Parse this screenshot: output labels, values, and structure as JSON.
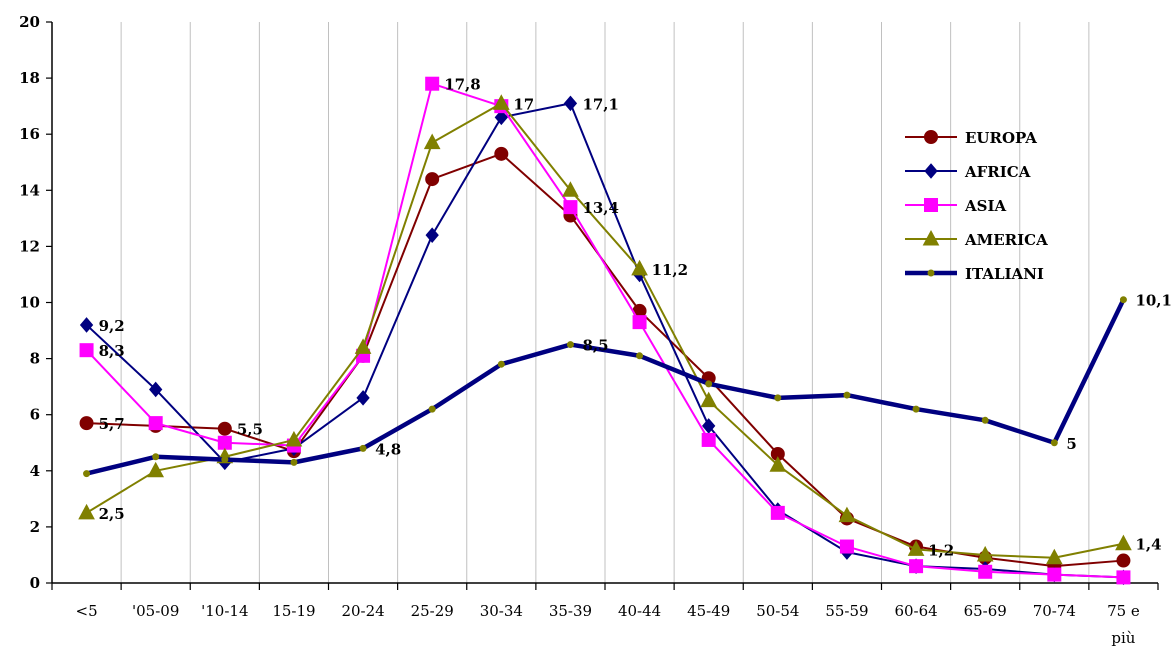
{
  "chart_data": {
    "type": "line",
    "title": "",
    "xlabel": "",
    "ylabel": "",
    "ylim": [
      0,
      20
    ],
    "yticks": [
      "0",
      "2",
      "4",
      "6",
      "8",
      "10",
      "12",
      "14",
      "16",
      "18",
      "20"
    ],
    "categories": [
      "<5",
      "'05-09",
      "'10-14",
      "15-19",
      "20-24",
      "25-29",
      "30-34",
      "35-39",
      "40-44",
      "45-49",
      "50-54",
      "55-59",
      "60-64",
      "65-69",
      "70-74",
      "75 e più"
    ],
    "grid": "vertical",
    "legend_position": "right",
    "series": [
      {
        "name": "EUROPA",
        "marker": "circle",
        "color": "#800000",
        "line_color": "#800000",
        "values": [
          5.7,
          5.6,
          5.5,
          4.7,
          8.1,
          14.4,
          15.3,
          13.1,
          9.7,
          7.3,
          4.6,
          2.3,
          1.3,
          0.9,
          0.6,
          0.8
        ]
      },
      {
        "name": "AFRICA",
        "marker": "diamond",
        "color": "#000080",
        "line_color": "#000080",
        "values": [
          9.2,
          6.9,
          4.3,
          4.8,
          6.6,
          12.4,
          16.6,
          17.1,
          11.0,
          5.6,
          2.6,
          1.1,
          0.6,
          0.5,
          0.3,
          0.2
        ]
      },
      {
        "name": "ASIA",
        "marker": "square",
        "color": "#ff00ff",
        "line_color": "#ff00ff",
        "values": [
          8.3,
          5.7,
          5.0,
          4.9,
          8.1,
          17.8,
          17.0,
          13.4,
          9.3,
          5.1,
          2.5,
          1.3,
          0.6,
          0.4,
          0.3,
          0.2
        ]
      },
      {
        "name": "AMERICA",
        "marker": "triangle",
        "color": "#808000",
        "line_color": "#808000",
        "values": [
          2.5,
          4.0,
          4.5,
          5.1,
          8.4,
          15.7,
          17.1,
          14.0,
          11.2,
          6.5,
          4.2,
          2.4,
          1.2,
          1.0,
          0.9,
          1.4
        ]
      },
      {
        "name": "ITALIANI",
        "marker": "dot",
        "color": "#808000",
        "line_color": "#000080",
        "values": [
          3.9,
          4.5,
          4.4,
          4.3,
          4.8,
          6.2,
          7.8,
          8.5,
          8.1,
          7.1,
          6.6,
          6.7,
          6.2,
          5.8,
          5.0,
          10.1
        ]
      }
    ],
    "annotations": [
      {
        "text": "5,7",
        "series": "EUROPA",
        "index": 0
      },
      {
        "text": "5,5",
        "series": "EUROPA",
        "index": 2
      },
      {
        "text": "9,2",
        "series": "AFRICA",
        "index": 0
      },
      {
        "text": "17,1",
        "series": "AFRICA",
        "index": 7
      },
      {
        "text": "8,3",
        "series": "ASIA",
        "index": 0
      },
      {
        "text": "17,8",
        "series": "ASIA",
        "index": 5
      },
      {
        "text": "13,4",
        "series": "ASIA",
        "index": 7
      },
      {
        "text": "2,5",
        "series": "AMERICA",
        "index": 0
      },
      {
        "text": "17",
        "series": "AMERICA",
        "index": 6
      },
      {
        "text": "11,2",
        "series": "AMERICA",
        "index": 8
      },
      {
        "text": "1,2",
        "series": "AMERICA",
        "index": 12
      },
      {
        "text": "1,4",
        "series": "AMERICA",
        "index": 15
      },
      {
        "text": "4,8",
        "series": "ITALIANI",
        "index": 4
      },
      {
        "text": "8,5",
        "series": "ITALIANI",
        "index": 7
      },
      {
        "text": "5",
        "series": "ITALIANI",
        "index": 14
      },
      {
        "text": "10,1",
        "series": "ITALIANI",
        "index": 15
      }
    ]
  }
}
